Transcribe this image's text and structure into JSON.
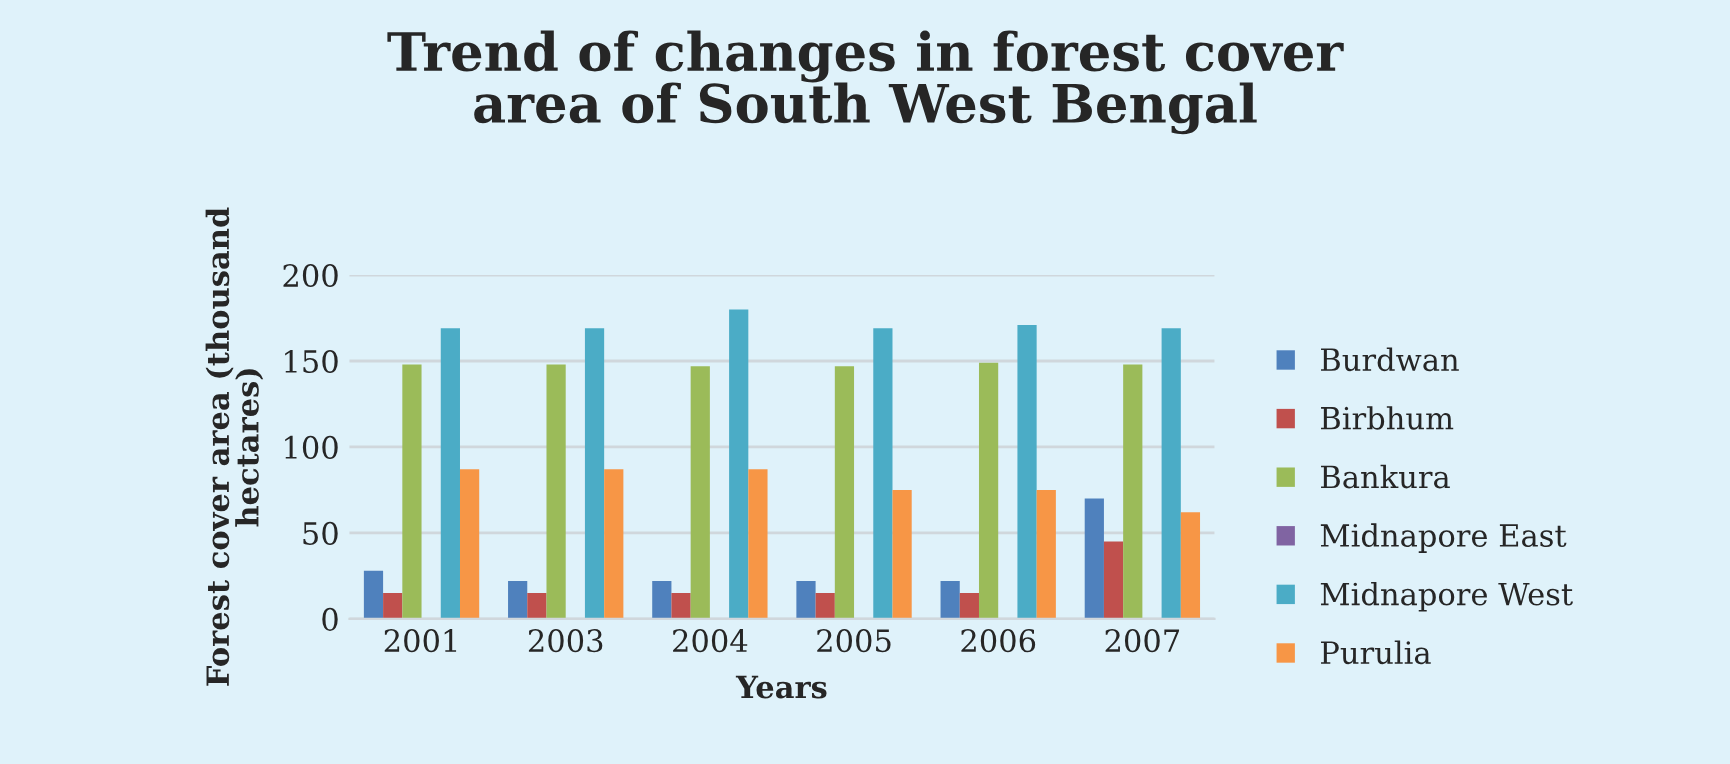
{
  "chart_data": {
    "type": "bar",
    "title": "Trend of changes in forest cover\narea of South West Bengal",
    "xlabel": "Years",
    "ylabel": "Forest cover area (thousand\nhectares)",
    "categories": [
      "2001",
      "2003",
      "2004",
      "2005",
      "2006",
      "2007"
    ],
    "series": [
      {
        "name": "Burdwan",
        "color": "#4f81bd",
        "values": [
          28,
          22,
          22,
          22,
          22,
          70
        ]
      },
      {
        "name": "Birbhum",
        "color": "#c0504d",
        "values": [
          15,
          15,
          15,
          15,
          15,
          45
        ]
      },
      {
        "name": "Bankura",
        "color": "#9bbb59",
        "values": [
          148,
          148,
          147,
          147,
          149,
          148
        ]
      },
      {
        "name": "Midnapore East",
        "color": "#8064a2",
        "values": [
          0,
          0,
          0,
          0,
          0,
          0
        ]
      },
      {
        "name": "Midnapore West",
        "color": "#4bacc6",
        "values": [
          169,
          169,
          180,
          169,
          171,
          169
        ]
      },
      {
        "name": "Purulia",
        "color": "#f79646",
        "values": [
          87,
          87,
          87,
          75,
          75,
          62
        ]
      }
    ],
    "ylim": [
      0,
      200
    ],
    "yticks": [
      0,
      50,
      100,
      150,
      200
    ],
    "grid": "y",
    "legend": "right"
  }
}
